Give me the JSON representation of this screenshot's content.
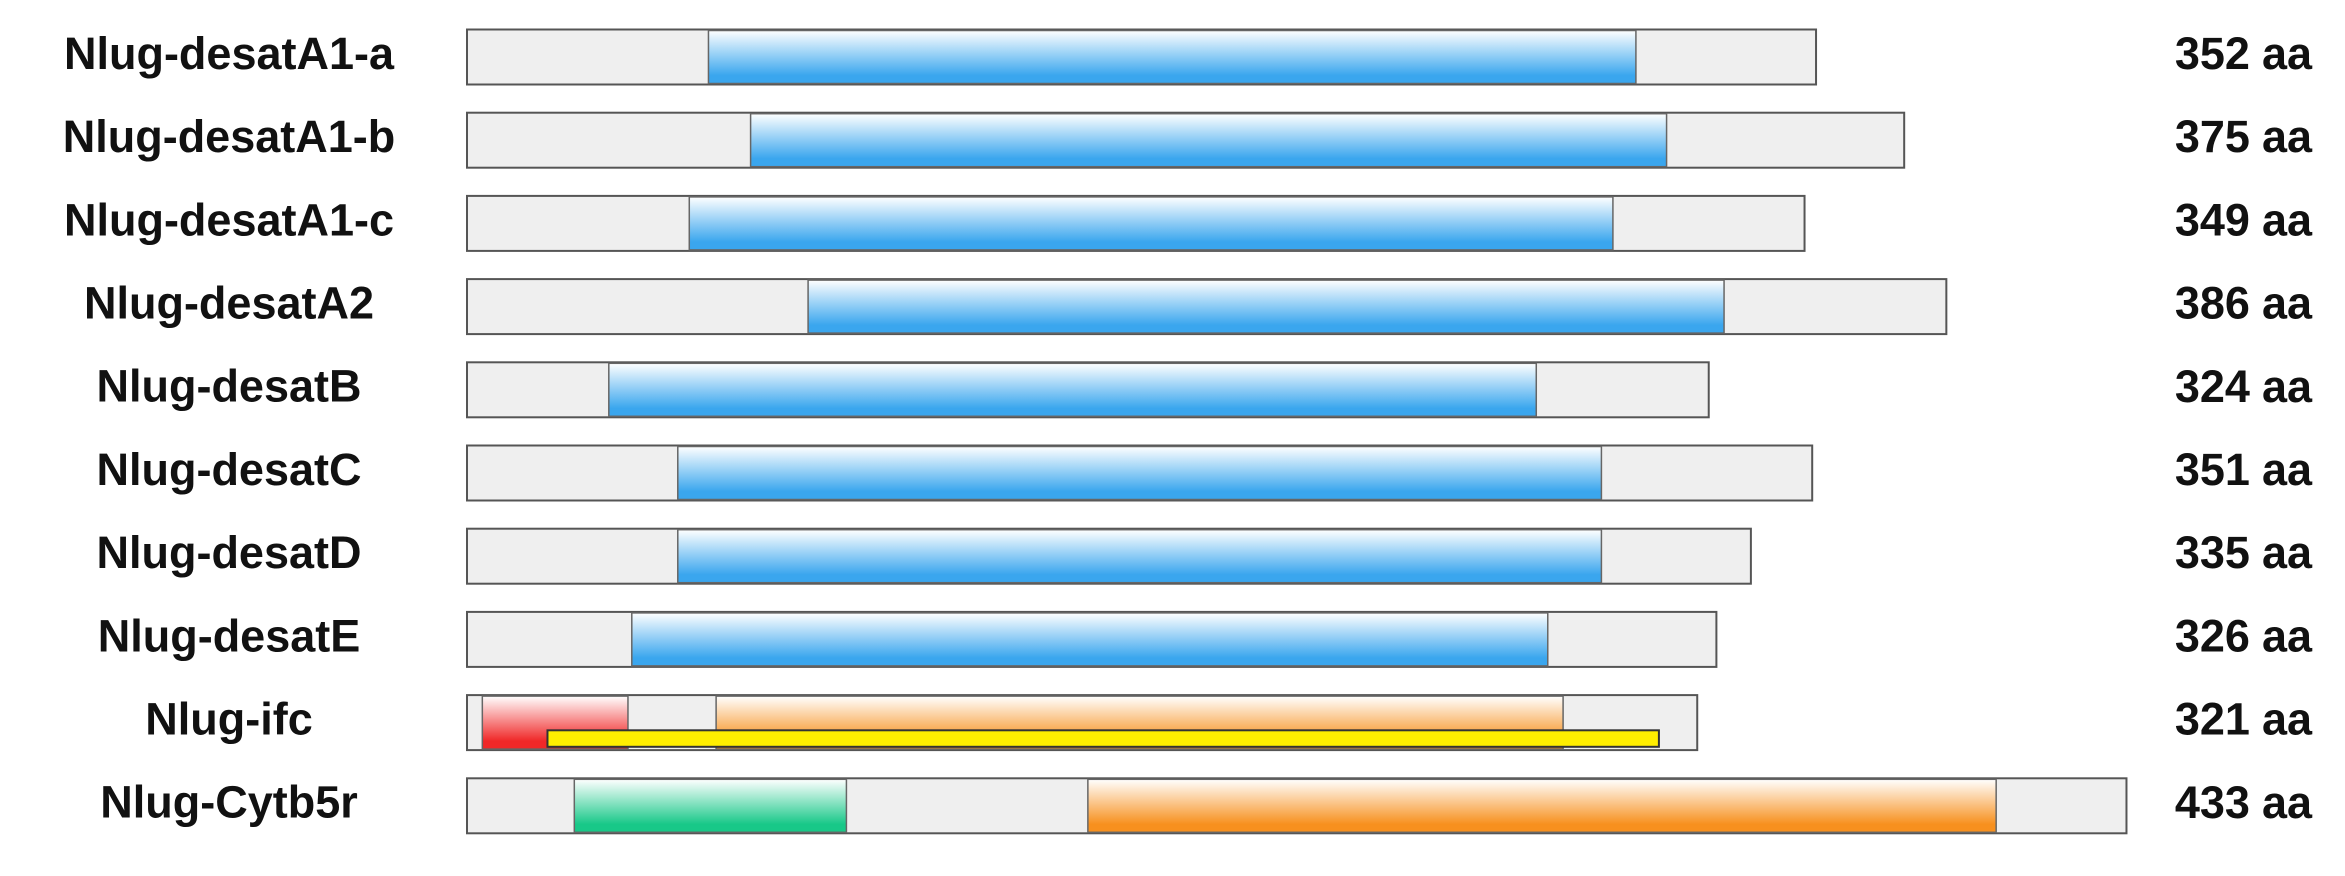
{
  "proteins": [
    {
      "name": "Nlug-desatA1-a",
      "length": 352,
      "unit": "aa",
      "domains": [
        {
          "start": 63,
          "end": 305,
          "color": "#3aa6ee"
        }
      ]
    },
    {
      "name": "Nlug-desatA1-b",
      "length": 375,
      "unit": "aa",
      "domains": [
        {
          "start": 74,
          "end": 313,
          "color": "#3aa6ee"
        }
      ]
    },
    {
      "name": "Nlug-desatA1-c",
      "length": 349,
      "unit": "aa",
      "domains": [
        {
          "start": 58,
          "end": 299,
          "color": "#3aa6ee"
        }
      ]
    },
    {
      "name": "Nlug-desatA2",
      "length": 386,
      "unit": "aa",
      "domains": [
        {
          "start": 89,
          "end": 328,
          "color": "#3aa6ee"
        }
      ]
    },
    {
      "name": "Nlug-desatB",
      "length": 324,
      "unit": "aa",
      "domains": [
        {
          "start": 37,
          "end": 279,
          "color": "#3aa6ee"
        }
      ]
    },
    {
      "name": "Nlug-desatC",
      "length": 351,
      "unit": "aa",
      "domains": [
        {
          "start": 55,
          "end": 296,
          "color": "#3aa6ee"
        }
      ]
    },
    {
      "name": "Nlug-desatD",
      "length": 335,
      "unit": "aa",
      "domains": [
        {
          "start": 55,
          "end": 296,
          "color": "#3aa6ee"
        }
      ]
    },
    {
      "name": "Nlug-desatE",
      "length": 326,
      "unit": "aa",
      "domains": [
        {
          "start": 43,
          "end": 282,
          "color": "#3aa6ee"
        }
      ]
    },
    {
      "name": "Nlug-ifc",
      "length": 321,
      "unit": "aa",
      "domains": [
        {
          "start": 4,
          "end": 42,
          "color": "#f02828"
        },
        {
          "start": 65,
          "end": 286,
          "color": "#f7901e"
        }
      ],
      "overlay": [
        {
          "start": 21,
          "end": 311,
          "color": "#ffee00"
        }
      ]
    },
    {
      "name": "Nlug-Cytb5r",
      "length": 433,
      "unit": "aa",
      "domains": [
        {
          "start": 28,
          "end": 99,
          "color": "#18c888"
        },
        {
          "start": 162,
          "end": 399,
          "color": "#f7901e"
        }
      ]
    }
  ]
}
